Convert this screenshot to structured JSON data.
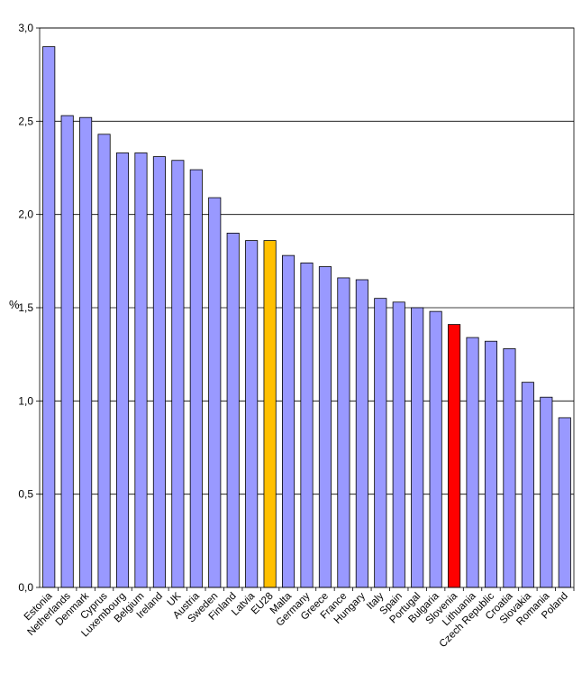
{
  "chart_data": {
    "type": "bar",
    "ylabel": "%",
    "ylim": [
      0,
      3.0
    ],
    "yticks": [
      "0,0",
      "0,5",
      "1,0",
      "1,5",
      "2,0",
      "2,5",
      "3,0"
    ],
    "yticks_values": [
      0,
      0.5,
      1.0,
      1.5,
      2.0,
      2.5,
      3.0
    ],
    "grid": true,
    "categories": [
      "Estonia",
      "Netherlands",
      "Denmark",
      "Cyprus",
      "Luxembourg",
      "Belgium",
      "Ireland",
      "UK",
      "Austria",
      "Sweden",
      "Finland",
      "Latvia",
      "EU28",
      "Malta",
      "Germany",
      "Greece",
      "France",
      "Hungary",
      "Italy",
      "Spain",
      "Portugal",
      "Bulgaria",
      "Slovenia",
      "Lithuania",
      "Czech Republic",
      "Croatia",
      "Slovakia",
      "Romania",
      "Poland"
    ],
    "values": [
      2.9,
      2.53,
      2.52,
      2.43,
      2.33,
      2.33,
      2.31,
      2.29,
      2.24,
      2.09,
      1.9,
      1.86,
      1.86,
      1.78,
      1.74,
      1.72,
      1.66,
      1.65,
      1.55,
      1.53,
      1.5,
      1.48,
      1.41,
      1.34,
      1.32,
      1.28,
      1.1,
      1.02,
      0.91
    ],
    "colors": {
      "default": "#9999ff",
      "EU28": "#ffc000",
      "Slovenia": "#ff0000",
      "bar_edge": "#000000",
      "grid": "#000000"
    }
  }
}
